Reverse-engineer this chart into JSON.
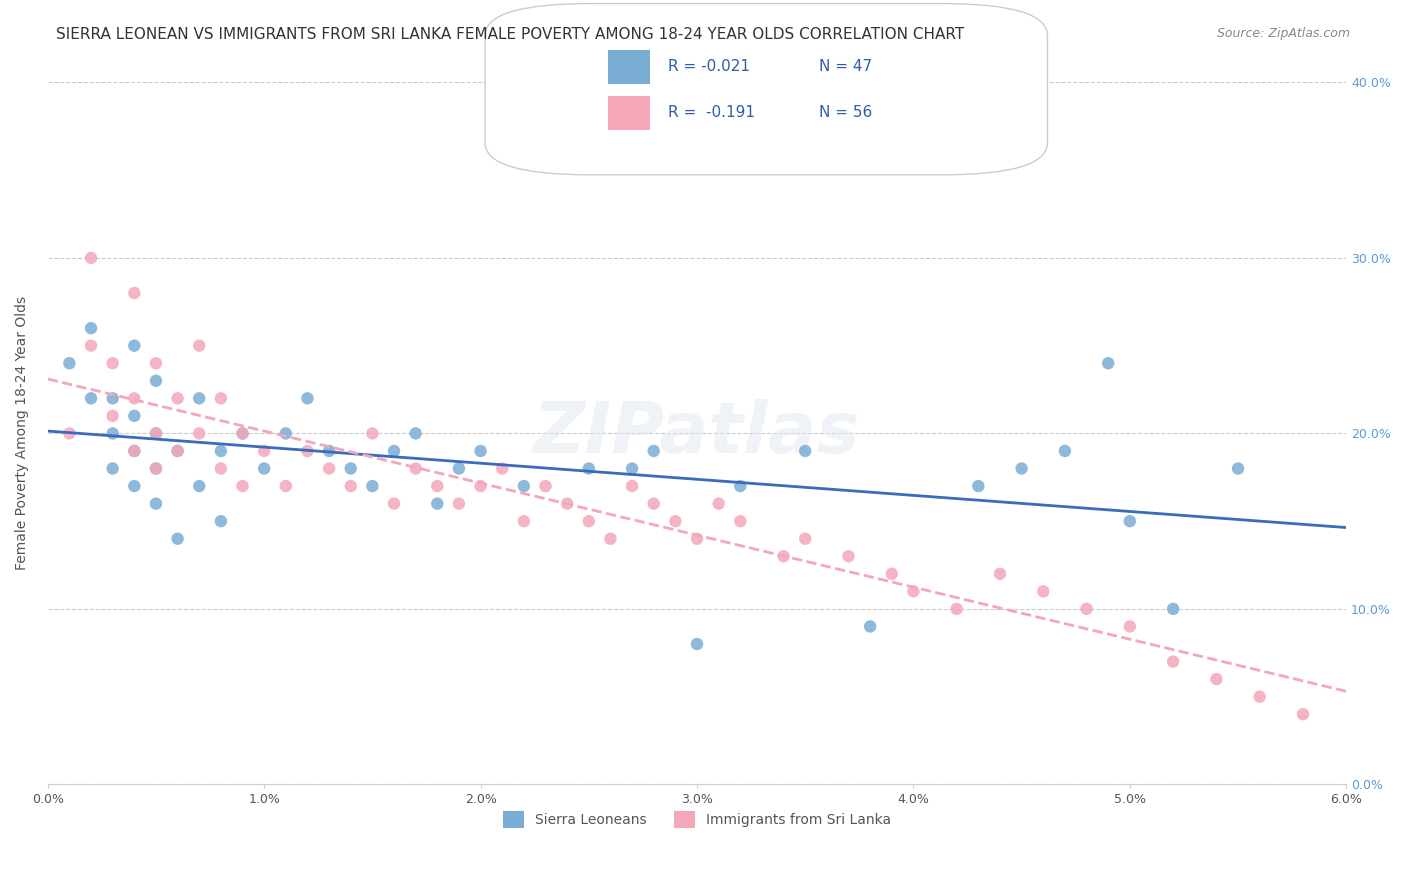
{
  "title": "SIERRA LEONEAN VS IMMIGRANTS FROM SRI LANKA FEMALE POVERTY AMONG 18-24 YEAR OLDS CORRELATION CHART",
  "source": "Source: ZipAtlas.com",
  "xlabel": "",
  "ylabel": "Female Poverty Among 18-24 Year Olds",
  "xlim": [
    0.0,
    0.06
  ],
  "ylim": [
    0.0,
    0.4
  ],
  "xticks": [
    0.0,
    0.01,
    0.02,
    0.03,
    0.04,
    0.05,
    0.06
  ],
  "xticklabels": [
    "0.0%",
    "1.0%",
    "2.0%",
    "3.0%",
    "4.0%",
    "5.0%",
    "6.0%"
  ],
  "yticks": [
    0.0,
    0.1,
    0.2,
    0.3,
    0.4
  ],
  "yticklabels": [
    "0.0%",
    "10.0%",
    "20.0%",
    "30.0%",
    "40.0%"
  ],
  "blue_color": "#7aadd4",
  "pink_color": "#f4a7b9",
  "blue_line_color": "#3a6bbd",
  "pink_line_color": "#f4a7b9",
  "legend_R1": "R = -0.021",
  "legend_N1": "N = 47",
  "legend_R2": "R =  -0.191",
  "legend_N2": "N = 56",
  "watermark": "ZIPatlas",
  "title_fontsize": 11,
  "axis_label_fontsize": 10,
  "tick_fontsize": 9,
  "blue_x": [
    0.001,
    0.002,
    0.002,
    0.003,
    0.003,
    0.003,
    0.004,
    0.004,
    0.004,
    0.004,
    0.005,
    0.005,
    0.005,
    0.005,
    0.006,
    0.006,
    0.007,
    0.007,
    0.008,
    0.008,
    0.009,
    0.01,
    0.011,
    0.012,
    0.013,
    0.014,
    0.015,
    0.016,
    0.017,
    0.018,
    0.019,
    0.02,
    0.022,
    0.025,
    0.027,
    0.028,
    0.03,
    0.032,
    0.035,
    0.038,
    0.043,
    0.045,
    0.047,
    0.049,
    0.05,
    0.052,
    0.055
  ],
  "blue_y": [
    0.24,
    0.26,
    0.22,
    0.2,
    0.18,
    0.22,
    0.25,
    0.19,
    0.17,
    0.21,
    0.23,
    0.16,
    0.18,
    0.2,
    0.14,
    0.19,
    0.22,
    0.17,
    0.19,
    0.15,
    0.2,
    0.18,
    0.2,
    0.22,
    0.19,
    0.18,
    0.17,
    0.19,
    0.2,
    0.16,
    0.18,
    0.19,
    0.17,
    0.18,
    0.18,
    0.19,
    0.08,
    0.17,
    0.19,
    0.09,
    0.17,
    0.18,
    0.19,
    0.24,
    0.15,
    0.1,
    0.18
  ],
  "pink_x": [
    0.001,
    0.002,
    0.002,
    0.003,
    0.003,
    0.004,
    0.004,
    0.004,
    0.005,
    0.005,
    0.005,
    0.006,
    0.006,
    0.007,
    0.007,
    0.008,
    0.008,
    0.009,
    0.009,
    0.01,
    0.011,
    0.012,
    0.013,
    0.014,
    0.015,
    0.016,
    0.017,
    0.018,
    0.019,
    0.02,
    0.021,
    0.022,
    0.023,
    0.024,
    0.025,
    0.026,
    0.027,
    0.028,
    0.029,
    0.03,
    0.031,
    0.032,
    0.034,
    0.035,
    0.037,
    0.039,
    0.04,
    0.042,
    0.044,
    0.046,
    0.048,
    0.05,
    0.052,
    0.054,
    0.056,
    0.058
  ],
  "pink_y": [
    0.2,
    0.3,
    0.25,
    0.21,
    0.24,
    0.22,
    0.19,
    0.28,
    0.24,
    0.2,
    0.18,
    0.22,
    0.19,
    0.25,
    0.2,
    0.22,
    0.18,
    0.2,
    0.17,
    0.19,
    0.17,
    0.19,
    0.18,
    0.17,
    0.2,
    0.16,
    0.18,
    0.17,
    0.16,
    0.17,
    0.18,
    0.15,
    0.17,
    0.16,
    0.15,
    0.14,
    0.17,
    0.16,
    0.15,
    0.14,
    0.16,
    0.15,
    0.13,
    0.14,
    0.13,
    0.12,
    0.11,
    0.1,
    0.12,
    0.11,
    0.1,
    0.09,
    0.07,
    0.06,
    0.05,
    0.04
  ]
}
